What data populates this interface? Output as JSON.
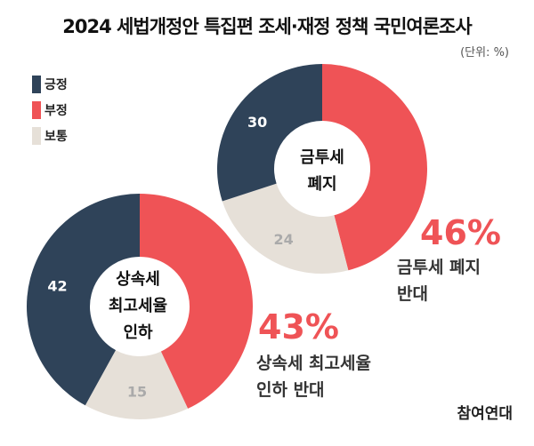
{
  "chart_data": {
    "type": "pie",
    "title": "2024 세법개정안 특집편 조세·재정 정책 국민여론조사",
    "unit": "(단위: %)",
    "legend": [
      "긍정",
      "부정",
      "보통"
    ],
    "colors": {
      "긍정": "#2f4359",
      "부정": "#ef5356",
      "보통": "#e6e0d8"
    },
    "charts": [
      {
        "name": "금투세 폐지",
        "center_lines": [
          "금투세",
          "폐지"
        ],
        "values": {
          "부정": 46,
          "보통": 24,
          "긍정": 30
        },
        "highlight": "46%",
        "highlight_desc": [
          "금투세 폐지",
          "반대"
        ]
      },
      {
        "name": "상속세 최고세율 인하",
        "center_lines": [
          "상속세",
          "최고세율",
          "인하"
        ],
        "values": {
          "부정": 43,
          "보통": 15,
          "긍정": 42
        },
        "highlight": "43%",
        "highlight_desc": [
          "상속세 최고세율",
          "인하 반대"
        ]
      }
    ]
  },
  "brand": "참여연대"
}
